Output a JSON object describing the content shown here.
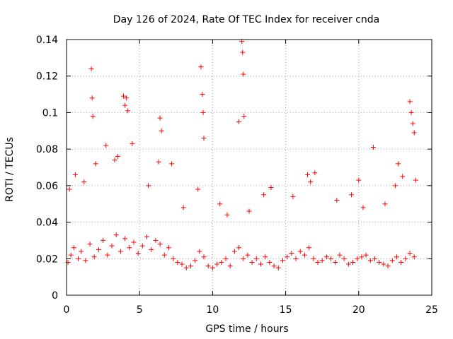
{
  "chart_data": {
    "type": "scatter",
    "title": "Day 126 of 2024, Rate Of TEC Index for receiver cnda",
    "xlabel": "GPS time / hours",
    "ylabel": "ROTI / TECUs",
    "xlim": [
      0,
      25
    ],
    "ylim": [
      0,
      0.14
    ],
    "xticks": [
      0,
      5,
      10,
      15,
      20,
      25
    ],
    "xtick_labels": [
      "0",
      "5",
      "10",
      "15",
      "20",
      "25"
    ],
    "yticks": [
      0,
      0.02,
      0.04,
      0.06,
      0.08,
      0.1,
      0.12,
      0.14
    ],
    "ytick_labels": [
      "0",
      "0.02",
      "0.04",
      "0.06",
      "0.08",
      "0.1",
      "0.12",
      "0.14"
    ],
    "grid": true,
    "marker": "+",
    "series_color": "#ff0000",
    "series": [
      {
        "name": "ROTI",
        "x": [
          0.1,
          0.3,
          0.5,
          0.8,
          1.0,
          1.3,
          1.6,
          1.9,
          2.2,
          2.5,
          2.8,
          3.1,
          3.4,
          3.7,
          4.0,
          4.3,
          4.6,
          4.9,
          5.2,
          5.5,
          5.8,
          6.1,
          6.4,
          6.7,
          7.0,
          7.3,
          7.6,
          7.9,
          8.2,
          8.5,
          8.8,
          9.1,
          9.4,
          9.7,
          10.0,
          10.3,
          10.6,
          10.9,
          11.2,
          11.5,
          11.8,
          12.1,
          12.4,
          12.7,
          13.0,
          13.3,
          13.6,
          13.9,
          14.2,
          14.5,
          14.8,
          15.1,
          15.4,
          15.7,
          16.0,
          16.3,
          16.6,
          16.9,
          17.2,
          17.5,
          17.8,
          18.1,
          18.4,
          18.7,
          19.0,
          19.3,
          19.6,
          19.9,
          20.2,
          20.5,
          20.8,
          21.1,
          21.4,
          21.7,
          22.0,
          22.3,
          22.6,
          22.9,
          23.2,
          23.5,
          23.8,
          1.7,
          1.75,
          1.8,
          3.9,
          4.0,
          4.1,
          4.2,
          6.4,
          6.5,
          9.2,
          9.3,
          9.35,
          9.4,
          11.8,
          12.0,
          12.05,
          12.1,
          12.15,
          20.0,
          21.0,
          22.7,
          23.5,
          23.6,
          23.7,
          23.8,
          0.2,
          0.6,
          1.2,
          2.0,
          2.7,
          3.3,
          3.5,
          4.5,
          5.6,
          6.3,
          7.2,
          8.0,
          9.0,
          10.5,
          11.0,
          12.5,
          13.5,
          14.0,
          15.5,
          16.5,
          16.7,
          17.0,
          18.5,
          19.5,
          20.3,
          21.8,
          22.5,
          23.0,
          23.9
        ],
        "y": [
          0.018,
          0.022,
          0.026,
          0.02,
          0.024,
          0.019,
          0.028,
          0.021,
          0.025,
          0.03,
          0.022,
          0.027,
          0.033,
          0.024,
          0.031,
          0.026,
          0.029,
          0.023,
          0.027,
          0.032,
          0.025,
          0.03,
          0.028,
          0.022,
          0.026,
          0.02,
          0.018,
          0.017,
          0.015,
          0.016,
          0.019,
          0.024,
          0.021,
          0.016,
          0.015,
          0.017,
          0.018,
          0.02,
          0.016,
          0.024,
          0.026,
          0.02,
          0.022,
          0.018,
          0.02,
          0.017,
          0.021,
          0.018,
          0.016,
          0.015,
          0.019,
          0.021,
          0.023,
          0.02,
          0.024,
          0.022,
          0.026,
          0.02,
          0.018,
          0.019,
          0.021,
          0.02,
          0.018,
          0.022,
          0.02,
          0.017,
          0.018,
          0.02,
          0.021,
          0.022,
          0.019,
          0.02,
          0.018,
          0.017,
          0.016,
          0.019,
          0.021,
          0.018,
          0.02,
          0.023,
          0.021,
          0.124,
          0.108,
          0.098,
          0.109,
          0.104,
          0.108,
          0.101,
          0.097,
          0.09,
          0.125,
          0.11,
          0.1,
          0.086,
          0.095,
          0.139,
          0.133,
          0.121,
          0.098,
          0.063,
          0.081,
          0.072,
          0.106,
          0.1,
          0.094,
          0.089,
          0.058,
          0.066,
          0.062,
          0.072,
          0.082,
          0.074,
          0.076,
          0.083,
          0.06,
          0.073,
          0.072,
          0.048,
          0.058,
          0.05,
          0.044,
          0.046,
          0.055,
          0.059,
          0.054,
          0.066,
          0.062,
          0.067,
          0.052,
          0.055,
          0.048,
          0.05,
          0.06,
          0.065,
          0.063
        ]
      }
    ]
  }
}
